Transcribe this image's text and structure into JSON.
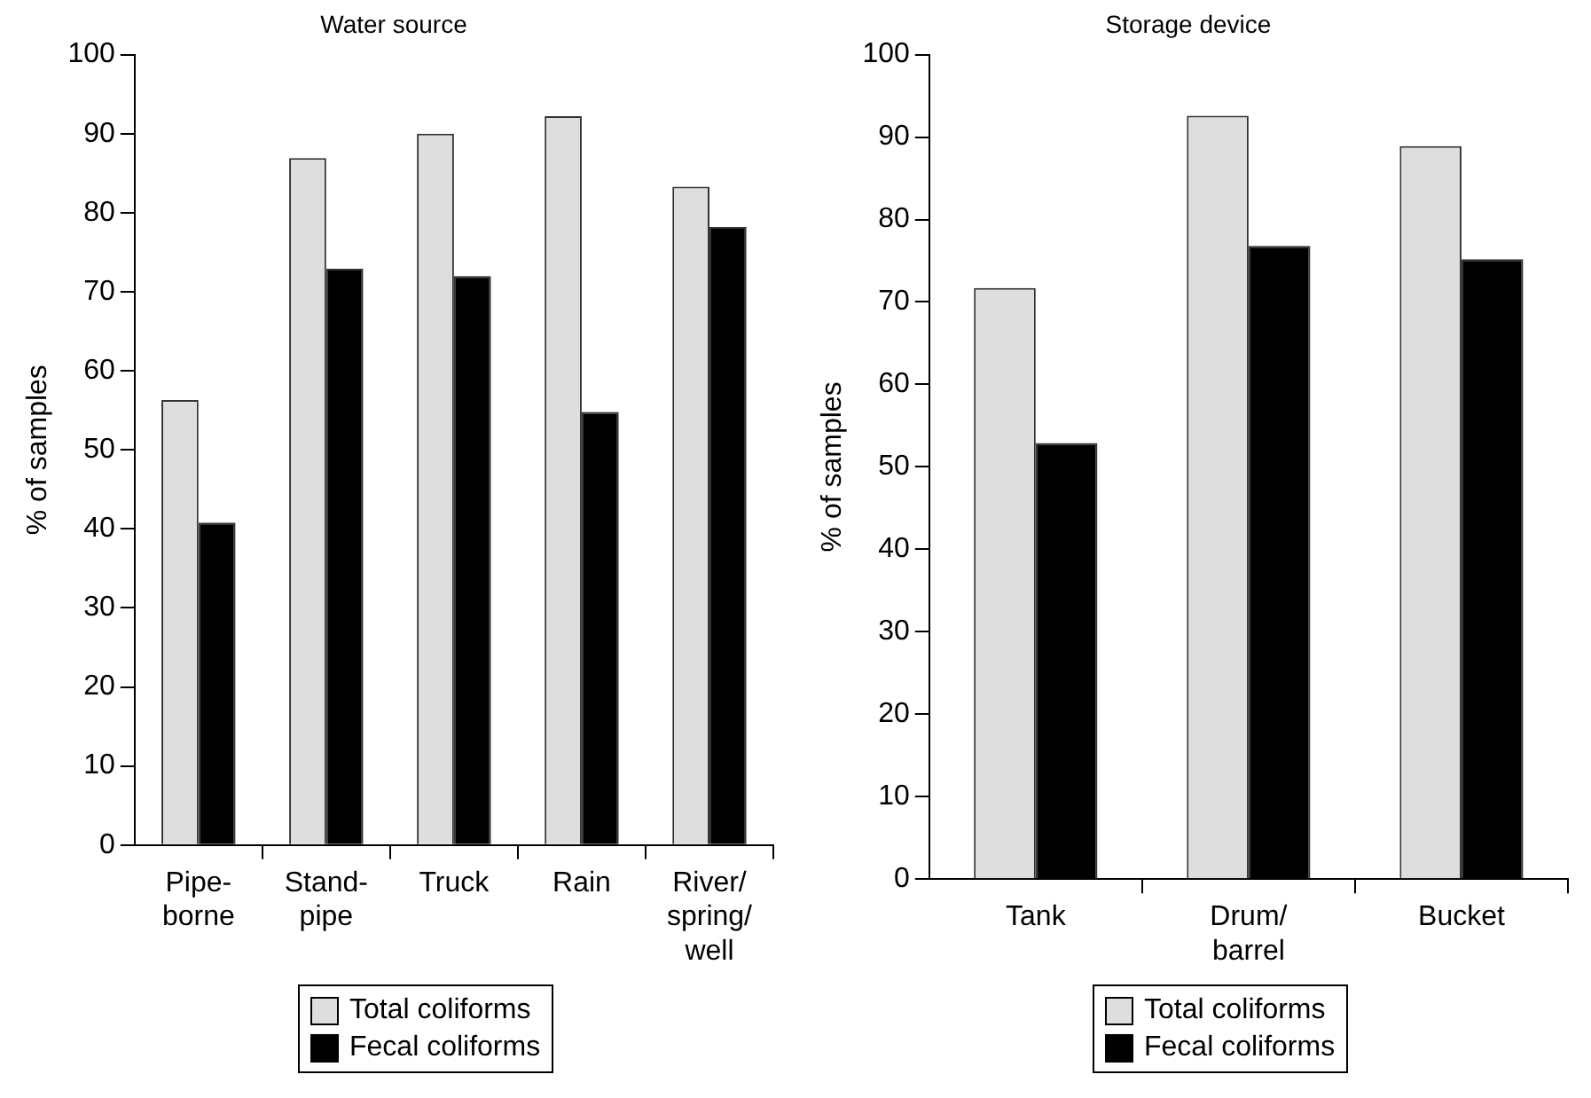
{
  "chart_data": [
    {
      "type": "bar",
      "title": "Water source",
      "ylabel": "% of samples",
      "categories": [
        "Pipe-borne",
        "Stand-pipe",
        "Truck",
        "Rain",
        "River/spring/well"
      ],
      "series": [
        {
          "name": "Total coliforms",
          "color": "#dedede",
          "values": [
            56.3,
            86.9,
            90.0,
            92.2,
            83.3
          ]
        },
        {
          "name": "Fecal coliforms",
          "color": "#000000",
          "values": [
            40.8,
            72.9,
            72.0,
            54.8,
            78.2
          ]
        }
      ],
      "ylim": [
        0,
        100
      ],
      "yticks": [
        0,
        10,
        20,
        30,
        40,
        50,
        60,
        70,
        80,
        90,
        100
      ],
      "grid": false,
      "legend": "bottom"
    },
    {
      "type": "bar",
      "title": "Storage device",
      "ylabel": "% of samples",
      "categories": [
        "Tank",
        "Drum/barrel",
        "Bucket"
      ],
      "series": [
        {
          "name": "Total coliforms",
          "color": "#dedede",
          "values": [
            71.7,
            92.6,
            88.9
          ]
        },
        {
          "name": "Fecal coliforms",
          "color": "#000000",
          "values": [
            52.9,
            76.8,
            75.2
          ]
        }
      ],
      "ylim": [
        0,
        100
      ],
      "yticks": [
        0,
        10,
        20,
        30,
        40,
        50,
        60,
        70,
        80,
        90,
        100
      ],
      "grid": false,
      "legend": "bottom"
    }
  ]
}
